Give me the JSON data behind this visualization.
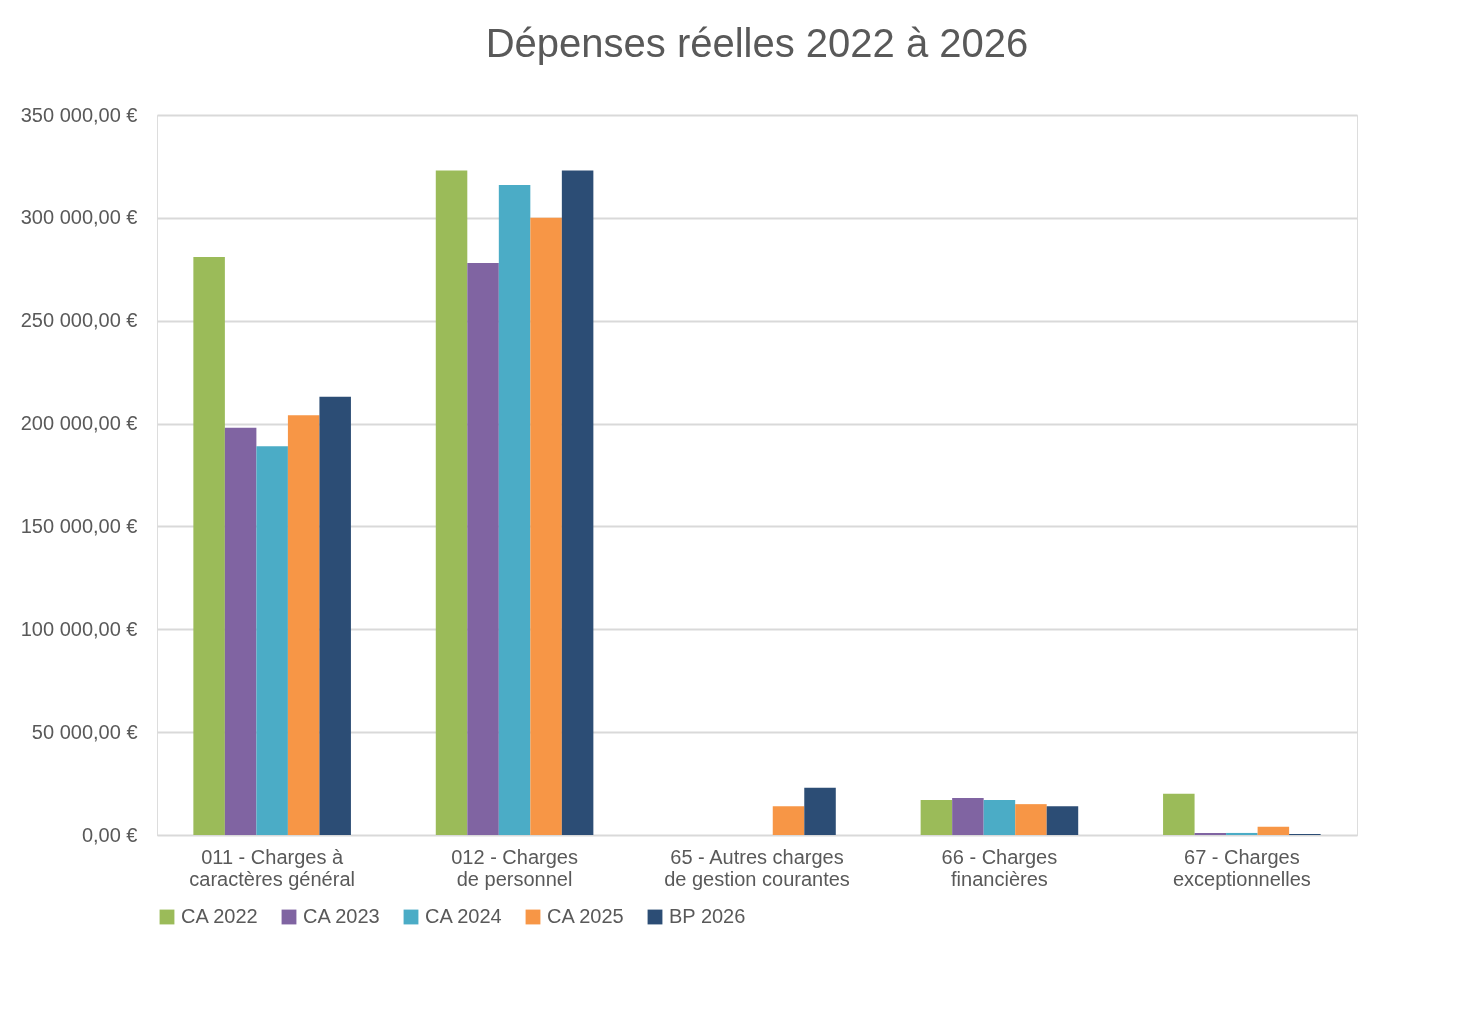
{
  "chart_data": {
    "type": "bar",
    "title": "Dépenses réelles 2022 à 2026",
    "categories": [
      "011 - Charges à caractères général",
      "012 - Charges de personnel",
      "65 - Autres charges de gestion courantes",
      "66 - Charges financières",
      "67 - Charges exceptionnelles"
    ],
    "series": [
      {
        "name": "CA 2022",
        "color": "#9bbb59",
        "values": [
          281000,
          323000,
          0,
          17000,
          20000
        ]
      },
      {
        "name": "CA 2023",
        "color": "#8064a2",
        "values": [
          198000,
          278000,
          0,
          18000,
          1000
        ]
      },
      {
        "name": "CA 2024",
        "color": "#4bacc6",
        "values": [
          189000,
          316000,
          0,
          17000,
          1000
        ]
      },
      {
        "name": "CA 2025",
        "color": "#f79646",
        "values": [
          204000,
          300000,
          14000,
          15000,
          4000
        ]
      },
      {
        "name": "BP 2026",
        "color": "#2c4d75",
        "values": [
          213000,
          323000,
          23000,
          14000,
          500
        ]
      }
    ],
    "ylim": [
      0,
      350000
    ],
    "yticks": [
      {
        "value": 0,
        "label": "0,00 €"
      },
      {
        "value": 50000,
        "label": "50 000,00 €"
      },
      {
        "value": 100000,
        "label": "100 000,00 €"
      },
      {
        "value": 150000,
        "label": "150 000,00 €"
      },
      {
        "value": 200000,
        "label": "200 000,00 €"
      },
      {
        "value": 250000,
        "label": "250 000,00 €"
      },
      {
        "value": 300000,
        "label": "300 000,00 €"
      },
      {
        "value": 350000,
        "label": "350 000,00 €"
      }
    ],
    "grid": "y",
    "legend": "bottom"
  }
}
